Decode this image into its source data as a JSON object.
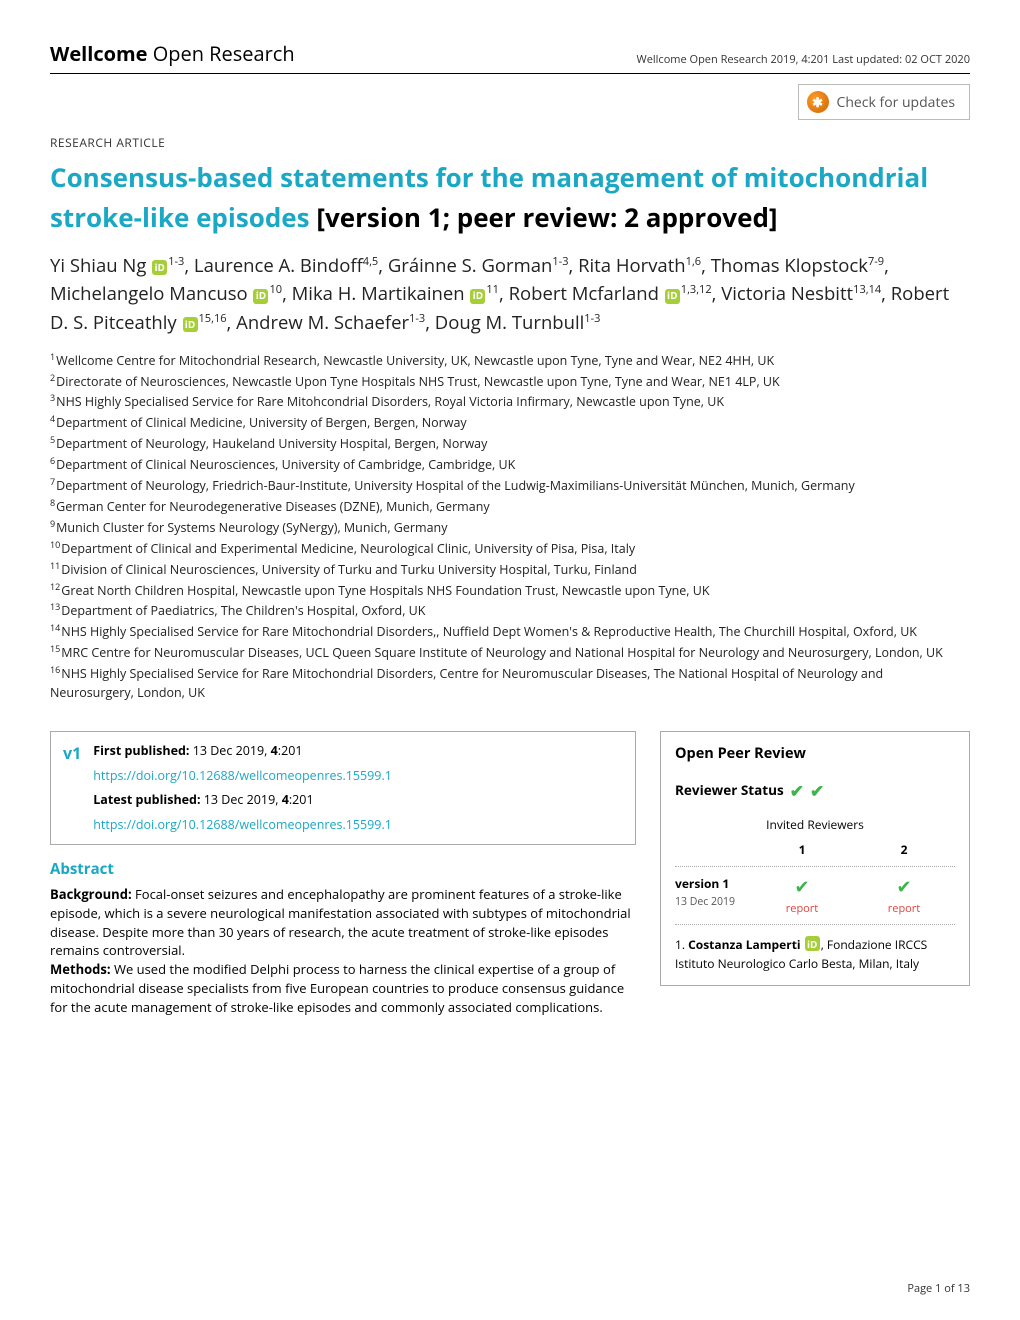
{
  "header": {
    "logo_bold": "Wellcome ",
    "logo_thin": "Open Research",
    "meta": "Wellcome Open Research 2019, 4:201 Last updated: 02 OCT 2020"
  },
  "check_updates": "Check for updates",
  "article_type": "RESEARCH ARTICLE",
  "title_link": "Consensus-based statements for the management of mitochondrial stroke-like episodes",
  "title_suffix": " [version 1; peer review: 2 approved]",
  "authors": [
    {
      "name": "Yi Shiau Ng",
      "orcid": true,
      "aff": "1-3"
    },
    {
      "name": "Laurence A. Bindoff",
      "orcid": false,
      "aff": "4,5"
    },
    {
      "name": "Gráinne S. Gorman",
      "orcid": false,
      "aff": "1-3"
    },
    {
      "name": "Rita Horvath",
      "orcid": false,
      "aff": "1,6"
    },
    {
      "name": "Thomas Klopstock",
      "orcid": false,
      "aff": "7-9"
    },
    {
      "name": "Michelangelo Mancuso",
      "orcid": true,
      "aff": "10"
    },
    {
      "name": "Mika H. Martikainen",
      "orcid": true,
      "aff": "11"
    },
    {
      "name": "Robert Mcfarland",
      "orcid": true,
      "aff": "1,3,12"
    },
    {
      "name": "Victoria Nesbitt",
      "orcid": false,
      "aff": "13,14"
    },
    {
      "name": "Robert D. S. Pitceathly",
      "orcid": true,
      "aff": "15,16"
    },
    {
      "name": "Andrew M. Schaefer",
      "orcid": false,
      "aff": "1-3"
    },
    {
      "name": "Doug M. Turnbull",
      "orcid": false,
      "aff": "1-3"
    }
  ],
  "affiliations": [
    {
      "n": "1",
      "t": "Wellcome Centre for Mitochondrial Research, Newcastle University, UK, Newcastle upon Tyne, Tyne and Wear, NE2 4HH, UK"
    },
    {
      "n": "2",
      "t": "Directorate of Neurosciences, Newcastle Upon Tyne Hospitals NHS Trust, Newcastle upon Tyne, Tyne and Wear, NE1 4LP, UK"
    },
    {
      "n": "3",
      "t": "NHS Highly Specialised Service for Rare Mitohcondrial Disorders, Royal Victoria Infirmary, Newcastle upon Tyne, UK"
    },
    {
      "n": "4",
      "t": "Department of Clinical Medicine, University of Bergen, Bergen, Norway"
    },
    {
      "n": "5",
      "t": "Department of Neurology, Haukeland University Hospital, Bergen, Norway"
    },
    {
      "n": "6",
      "t": "Department of Clinical Neurosciences, University of Cambridge, Cambridge, UK"
    },
    {
      "n": "7",
      "t": "Department of Neurology, Friedrich-Baur-Institute, University Hospital of the Ludwig-Maximilians-Universität München, Munich, Germany"
    },
    {
      "n": "8",
      "t": "German Center for Neurodegenerative Diseases (DZNE), Munich, Germany"
    },
    {
      "n": "9",
      "t": "Munich Cluster for Systems Neurology (SyNergy), Munich, Germany"
    },
    {
      "n": "10",
      "t": "Department of Clinical and Experimental Medicine, Neurological Clinic, University of Pisa, Pisa, Italy"
    },
    {
      "n": "11",
      "t": "Division of Clinical Neurosciences, University of Turku and Turku University Hospital, Turku, Finland"
    },
    {
      "n": "12",
      "t": "Great North Children Hospital, Newcastle upon Tyne Hospitals NHS Foundation Trust, Newcastle upon Tyne, UK"
    },
    {
      "n": "13",
      "t": "Department of Paediatrics, The Children's Hospital, Oxford, UK"
    },
    {
      "n": "14",
      "t": "NHS Highly Specialised Service for Rare Mitochondrial Disorders,, Nuffield Dept Women's & Reproductive Health, The Churchill Hospital, Oxford, UK"
    },
    {
      "n": "15",
      "t": "MRC Centre for Neuromuscular Diseases, UCL Queen Square Institute of Neurology and National Hospital for Neurology and Neurosurgery, London, UK"
    },
    {
      "n": "16",
      "t": "NHS Highly Specialised Service for Rare Mitochondrial Disorders, Centre for Neuromuscular Diseases, The National Hospital of Neurology and Neurosurgery, London, UK"
    }
  ],
  "version_box": {
    "v": "v1",
    "first_label": "First published:",
    "first_text": " 13 Dec 2019, ",
    "first_bold": "4",
    "first_tail": ":201",
    "first_doi": "https://doi.org/10.12688/wellcomeopenres.15599.1",
    "latest_label": "Latest published:",
    "latest_text": " 13 Dec 2019, ",
    "latest_bold": "4",
    "latest_tail": ":201",
    "latest_doi": "https://doi.org/10.12688/wellcomeopenres.15599.1"
  },
  "abstract": {
    "heading": "Abstract",
    "bg_label": "Background:",
    "bg_text": " Focal-onset seizures and encephalopathy are prominent features of a stroke-like episode, which is a severe neurological manifestation associated with subtypes of mitochondrial disease. Despite more than 30 years of research, the acute treatment of stroke-like episodes remains controversial.",
    "methods_label": "Methods:",
    "methods_text": " We used the modified Delphi process to harness the clinical expertise of a group of mitochondrial disease specialists from five European countries to produce consensus guidance for the acute management of stroke-like episodes and commonly associated complications."
  },
  "peer": {
    "title": "Open Peer Review",
    "status": "Reviewer Status",
    "invited": "Invited Reviewers",
    "cols": [
      "1",
      "2"
    ],
    "row_label": "version 1",
    "row_date": "13 Dec 2019",
    "report": "report",
    "reviewer_num": "1. ",
    "reviewer_name": "Costanza Lamperti",
    "reviewer_aff": ", Fondazione IRCCS Istituto Neurologico Carlo Besta, Milan, Italy"
  },
  "page_num": "Page 1 of 13",
  "colors": {
    "teal": "#1ba8c4",
    "green": "#3cb54a",
    "orcid": "#a6ce39",
    "red": "#e7413c"
  }
}
